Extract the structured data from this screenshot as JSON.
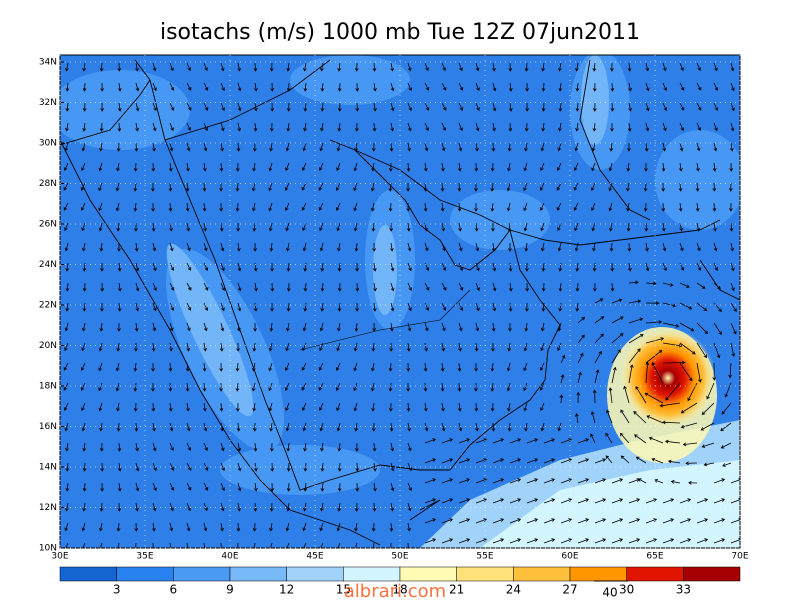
{
  "header": {
    "title": "isotachs (m/s) 1000 mb Tue 12Z 07jun2011"
  },
  "map": {
    "lat_labels": [
      "10N",
      "12N",
      "14N",
      "16N",
      "18N",
      "20N",
      "22N",
      "24N",
      "26N",
      "28N",
      "30N",
      "32N",
      "34N"
    ],
    "lon_labels": [
      "30E",
      "35E",
      "40E",
      "45E",
      "50E",
      "55E",
      "60E",
      "65E",
      "70E"
    ],
    "vector_reference": "40"
  },
  "colorbar": {
    "colors": [
      "#1464d2",
      "#2882f0",
      "#4b9bf5",
      "#78b9fa",
      "#a0d2fa",
      "#d2f5ff",
      "#fffab4",
      "#ffe27a",
      "#ffc03c",
      "#ff9600",
      "#e11400",
      "#a50000"
    ],
    "labels": [
      3,
      6,
      9,
      12,
      15,
      18,
      21,
      24,
      27,
      30,
      33
    ]
  },
  "watermark": "albrari.com"
}
